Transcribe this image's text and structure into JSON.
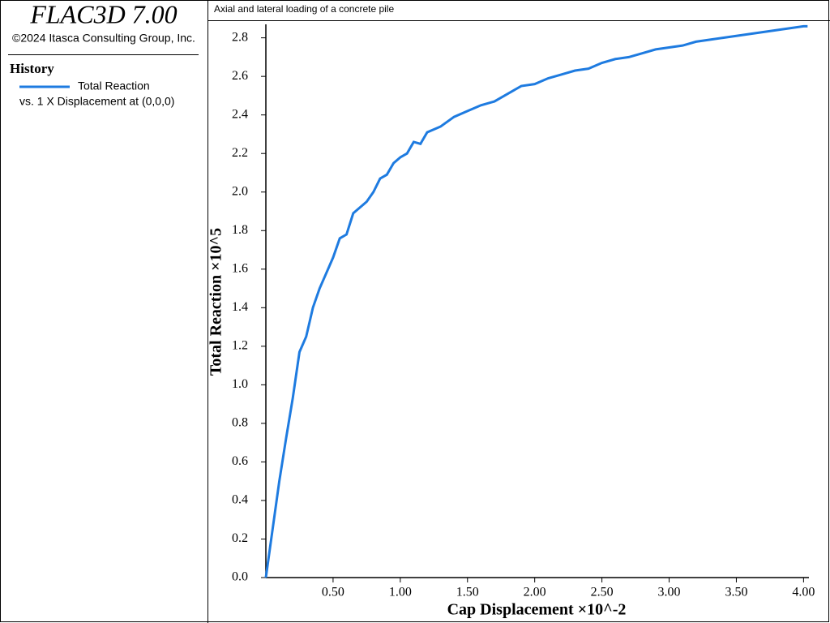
{
  "app": {
    "title": "FLAC3D 7.00",
    "copyright": "©2024 Itasca Consulting Group, Inc.",
    "panel_title": "History"
  },
  "chart_data": {
    "type": "line",
    "title": "Axial and lateral loading of a concrete pile",
    "xlabel": "Cap Displacement ×10^-2",
    "ylabel": "Total Reaction ×10^5",
    "legend_note": "vs. 1 X Displacement at (0,0,0)",
    "x": [
      0,
      0.05,
      0.1,
      0.15,
      0.2,
      0.25,
      0.3,
      0.35,
      0.4,
      0.45,
      0.5,
      0.55,
      0.6,
      0.65,
      0.7,
      0.75,
      0.8,
      0.85,
      0.9,
      0.95,
      1.0,
      1.05,
      1.1,
      1.15,
      1.2,
      1.3,
      1.4,
      1.5,
      1.6,
      1.7,
      1.8,
      1.9,
      2.0,
      2.1,
      2.2,
      2.3,
      2.4,
      2.5,
      2.6,
      2.7,
      2.8,
      2.9,
      3.0,
      3.1,
      3.2,
      3.3,
      3.4,
      3.5,
      3.6,
      3.7,
      3.8,
      3.9,
      4.0,
      4.03
    ],
    "series": [
      {
        "name": "Total Reaction",
        "color": "#1e7be0",
        "values": [
          0,
          0.25,
          0.5,
          0.72,
          0.93,
          1.17,
          1.25,
          1.4,
          1.5,
          1.58,
          1.66,
          1.76,
          1.78,
          1.89,
          1.92,
          1.95,
          2.0,
          2.07,
          2.09,
          2.15,
          2.18,
          2.2,
          2.26,
          2.25,
          2.31,
          2.34,
          2.39,
          2.42,
          2.45,
          2.47,
          2.51,
          2.55,
          2.56,
          2.59,
          2.61,
          2.63,
          2.64,
          2.67,
          2.69,
          2.7,
          2.72,
          2.74,
          2.75,
          2.76,
          2.78,
          2.79,
          2.8,
          2.81,
          2.82,
          2.83,
          2.84,
          2.85,
          2.86,
          2.86
        ]
      }
    ],
    "xlim": [
      0,
      4.04
    ],
    "ylim": [
      0,
      2.87
    ],
    "xticks": [
      {
        "value": 0.5,
        "label": "0.50"
      },
      {
        "value": 1.0,
        "label": "1.00"
      },
      {
        "value": 1.5,
        "label": "1.50"
      },
      {
        "value": 2.0,
        "label": "2.00"
      },
      {
        "value": 2.5,
        "label": "2.50"
      },
      {
        "value": 3.0,
        "label": "3.00"
      },
      {
        "value": 3.5,
        "label": "3.50"
      },
      {
        "value": 4.0,
        "label": "4.00"
      }
    ],
    "yticks": [
      {
        "value": 0,
        "label": "0.0"
      },
      0.2,
      0.4,
      0.6,
      0.8,
      {
        "value": 1.0,
        "label": "1.0"
      },
      1.2,
      1.4,
      1.6,
      1.8,
      {
        "value": 2.0,
        "label": "2.0"
      },
      2.2,
      2.4,
      2.6,
      2.8
    ]
  }
}
